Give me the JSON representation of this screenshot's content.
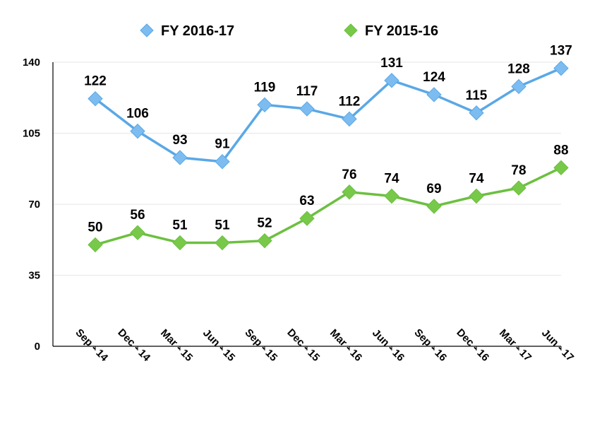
{
  "chart_data": {
    "type": "line",
    "title": "",
    "xlabel": "",
    "ylabel": "",
    "categories": [
      "Sep - 14",
      "Dec - 14",
      "Mar - 15",
      "Jun - 15",
      "Sep - 15",
      "Dec - 15",
      "Mar - 16",
      "Jun - 16",
      "Sep - 16",
      "Dec - 16",
      "Mar - 17",
      "Jun - 17"
    ],
    "ylim": [
      0,
      140
    ],
    "yticks": [
      "0",
      "35",
      "70",
      "105",
      "140"
    ],
    "grid": true,
    "legend_position": "top-center",
    "series": [
      {
        "name": "FY 2016-17",
        "color": "#5aa8e6",
        "marker_color": "#7cbcf0",
        "marker": "diamond",
        "values": [
          122,
          106,
          93,
          91,
          119,
          117,
          112,
          131,
          124,
          115,
          128,
          137
        ]
      },
      {
        "name": "FY 2015-16",
        "color": "#6cc040",
        "marker_color": "#78c84a",
        "marker": "diamond",
        "values": [
          50,
          56,
          51,
          51,
          52,
          63,
          76,
          74,
          69,
          74,
          78,
          88
        ]
      }
    ]
  }
}
